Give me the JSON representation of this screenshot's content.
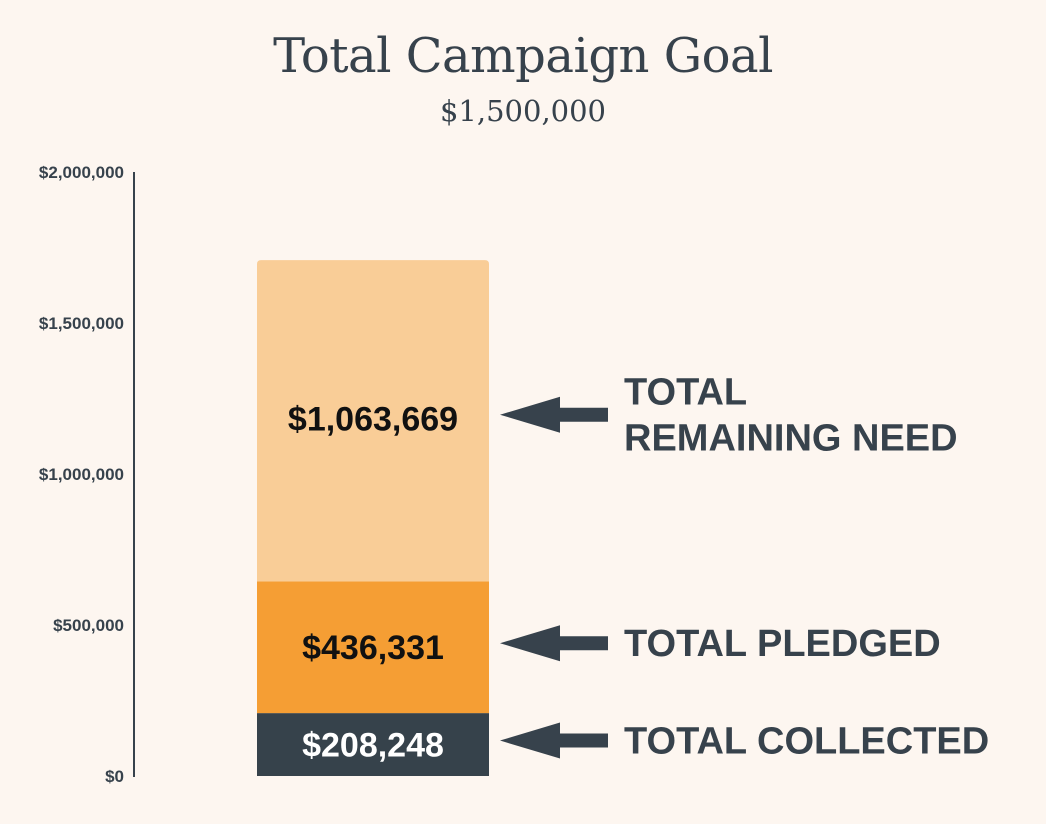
{
  "header": {
    "title": "Total Campaign Goal",
    "subtitle": "$1,500,000"
  },
  "colors": {
    "background": "#fdf6f0",
    "collected": "#36424b",
    "pledged": "#f59e34",
    "remaining": "#f9cd97",
    "text_dark": "#37424c"
  },
  "chart_data": {
    "type": "bar",
    "stacked": true,
    "title": "Total Campaign Goal",
    "subtitle": "$1,500,000",
    "ylim": [
      0,
      2000000
    ],
    "y_ticks": [
      {
        "value": 0,
        "label": "$0"
      },
      {
        "value": 500000,
        "label": "$500,000"
      },
      {
        "value": 1000000,
        "label": "$1,000,000"
      },
      {
        "value": 1500000,
        "label": "$1,500,000"
      },
      {
        "value": 2000000,
        "label": "$2,000,000"
      }
    ],
    "series": [
      {
        "key": "collected",
        "value": 208248,
        "value_label": "$208,248",
        "callout": [
          "TOTAL COLLECTED"
        ],
        "color": "#36424b",
        "text_color": "#ffffff"
      },
      {
        "key": "pledged",
        "value": 436331,
        "value_label": "$436,331",
        "callout": [
          "TOTAL PLEDGED"
        ],
        "color": "#f59e34",
        "text_color": "#111111"
      },
      {
        "key": "remaining",
        "value": 1063669,
        "value_label": "$1,063,669",
        "callout": [
          "TOTAL",
          "REMAINING NEED"
        ],
        "color": "#f9cd97",
        "text_color": "#111111"
      }
    ],
    "grid": false,
    "legend": "none"
  }
}
